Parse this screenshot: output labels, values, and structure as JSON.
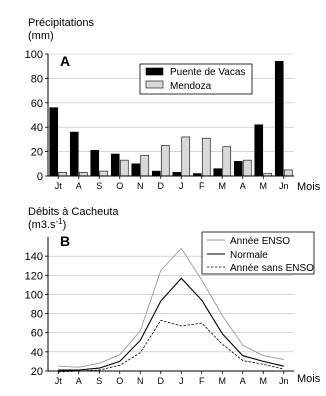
{
  "chart_data": [
    {
      "type": "bar",
      "panel_label": "A",
      "ylabel_line1": "Précipitations",
      "ylabel_line2": "(mm)",
      "xlabel": "Mois",
      "categories": [
        "Jt",
        "A",
        "S",
        "O",
        "N",
        "D",
        "J",
        "F",
        "M",
        "A",
        "M",
        "Jn"
      ],
      "ylim": [
        0,
        100
      ],
      "yticks": [
        0,
        20,
        40,
        60,
        80,
        100
      ],
      "legend_position": "top-right",
      "colors": {
        "Puente de Vacas": "#000000",
        "Mendoza": "#d9d9d9"
      },
      "series": [
        {
          "name": "Puente de Vacas",
          "values": [
            56,
            36,
            21,
            18,
            10,
            4,
            3,
            2,
            6,
            12,
            42,
            94
          ]
        },
        {
          "name": "Mendoza",
          "values": [
            3,
            3,
            4,
            13,
            17,
            25,
            32,
            31,
            24,
            13,
            2,
            5
          ]
        }
      ]
    },
    {
      "type": "line",
      "panel_label": "B",
      "ylabel_line1": "Débits à Cacheuta",
      "ylabel_unit_base": "(m3.s",
      "ylabel_unit_exp": "-1",
      "ylabel_unit_close": ")",
      "xlabel": "Mois",
      "categories": [
        "Jt",
        "A",
        "S",
        "O",
        "N",
        "D",
        "J",
        "F",
        "M",
        "A",
        "M",
        "Jn"
      ],
      "ylim": [
        20,
        160
      ],
      "yticks": [
        20,
        40,
        60,
        80,
        100,
        120,
        140
      ],
      "legend_position": "top-right",
      "series": [
        {
          "name": "Année ENSO",
          "style": "thin-gray",
          "values": [
            25,
            24,
            28,
            37,
            62,
            125,
            148,
            115,
            78,
            47,
            36,
            32
          ]
        },
        {
          "name": "Normale",
          "style": "solid",
          "values": [
            21,
            21,
            23,
            30,
            52,
            93,
            117,
            94,
            59,
            36,
            30,
            25
          ]
        },
        {
          "name": "Année sans ENSO",
          "style": "dashed",
          "values": [
            19,
            20,
            21,
            26,
            39,
            73,
            67,
            70,
            48,
            31,
            27,
            22
          ]
        }
      ]
    }
  ]
}
